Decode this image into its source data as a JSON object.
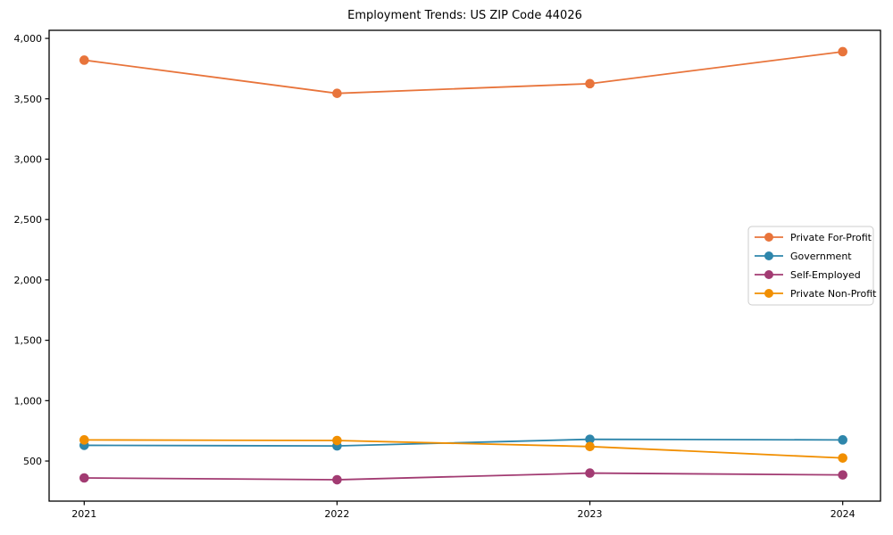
{
  "page": {
    "title": "Employment Trends: US ZIP Code 44026"
  },
  "chart_data": {
    "type": "line",
    "title": "Employment Trends: US ZIP Code 44026",
    "xlabel": "",
    "ylabel": "",
    "categories": [
      "2021",
      "2022",
      "2023",
      "2024"
    ],
    "x": [
      2021,
      2022,
      2023,
      2024
    ],
    "series": [
      {
        "name": "Private For-Profit",
        "color": "#E8743B",
        "values": [
          3820,
          3545,
          3625,
          3890
        ]
      },
      {
        "name": "Government",
        "color": "#2E86AB",
        "values": [
          630,
          625,
          680,
          675
        ]
      },
      {
        "name": "Self-Employed",
        "color": "#A23B72",
        "values": [
          360,
          345,
          400,
          385
        ]
      },
      {
        "name": "Private Non-Profit",
        "color": "#F18F01",
        "values": [
          675,
          670,
          620,
          525
        ]
      }
    ],
    "y_ticks": [
      500,
      1000,
      1500,
      2000,
      2500,
      3000,
      3500,
      4000
    ],
    "y_tick_labels": [
      "500",
      "1,000",
      "1,500",
      "2,000",
      "2,500",
      "3,000",
      "3,500",
      "4,000"
    ],
    "ylim": [
      168,
      4067
    ],
    "grid": false,
    "legend_position": "center right",
    "axis_color": "#000000",
    "tick_label_color": "#000000",
    "legend_border_color": "#cccccc",
    "legend_background": "#ffffff"
  }
}
